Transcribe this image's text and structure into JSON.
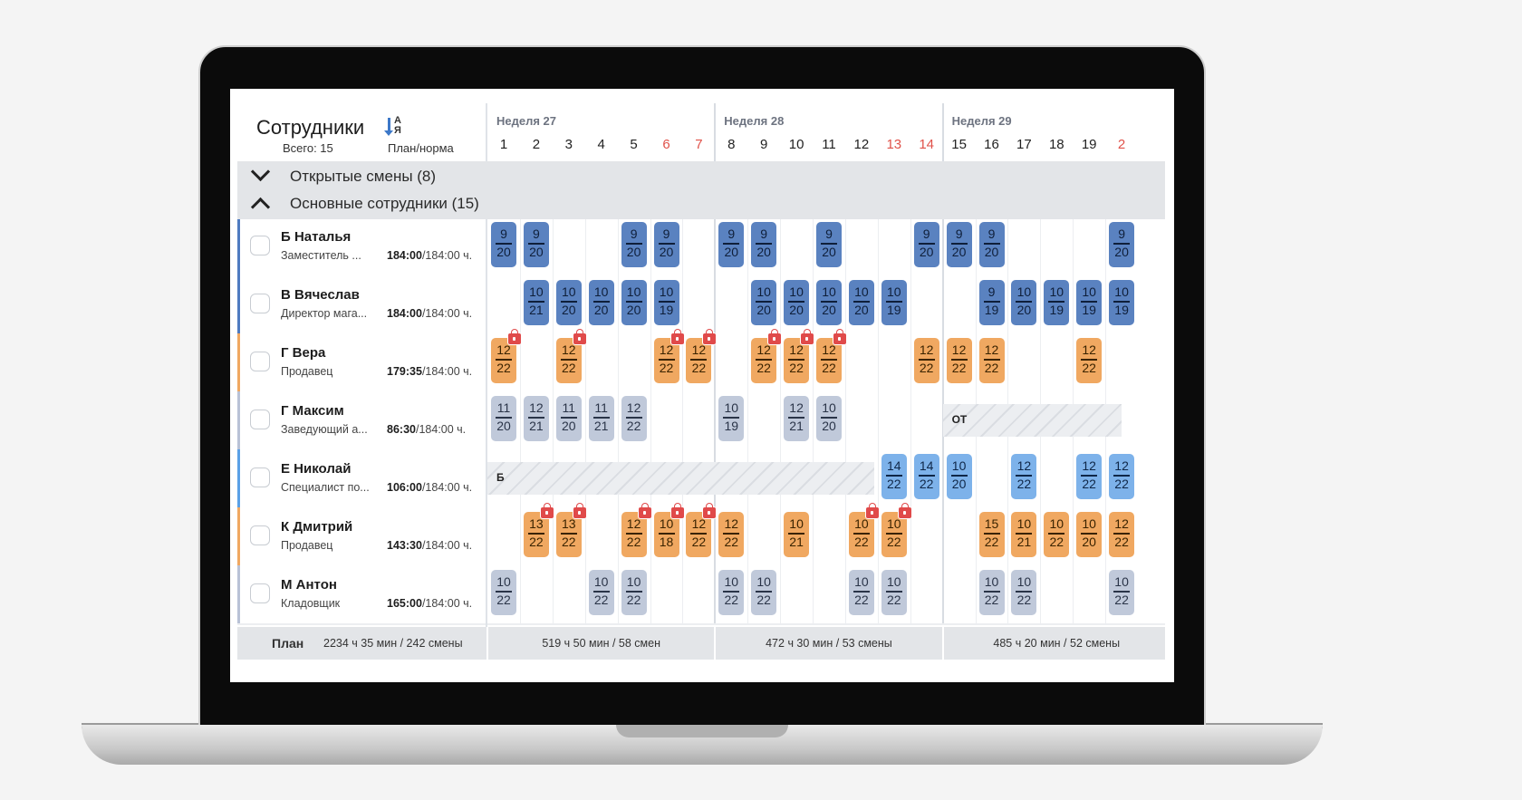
{
  "header": {
    "title": "Сотрудники",
    "total": "Всего: 15",
    "sort_letters": "А\nЯ",
    "plan_norm": "План/норма"
  },
  "weeks": [
    {
      "label": "Неделя 27",
      "start": 0
    },
    {
      "label": "Неделя 28",
      "start": 7
    },
    {
      "label": "Неделя 29",
      "start": 14
    }
  ],
  "days": [
    {
      "n": "1",
      "w": false
    },
    {
      "n": "2",
      "w": false
    },
    {
      "n": "3",
      "w": false
    },
    {
      "n": "4",
      "w": false
    },
    {
      "n": "5",
      "w": false
    },
    {
      "n": "6",
      "w": true
    },
    {
      "n": "7",
      "w": true
    },
    {
      "n": "8",
      "w": false
    },
    {
      "n": "9",
      "w": false
    },
    {
      "n": "10",
      "w": false
    },
    {
      "n": "11",
      "w": false
    },
    {
      "n": "12",
      "w": false
    },
    {
      "n": "13",
      "w": true
    },
    {
      "n": "14",
      "w": true
    },
    {
      "n": "15",
      "w": false
    },
    {
      "n": "16",
      "w": false
    },
    {
      "n": "17",
      "w": false
    },
    {
      "n": "18",
      "w": false
    },
    {
      "n": "19",
      "w": false
    },
    {
      "n": "2",
      "w": true
    }
  ],
  "colors": {
    "dark": "#5a82c0",
    "light": "#7db2ea",
    "orange": "#f0a861",
    "gray": "#c0c9da",
    "weekend": "#e0524a"
  },
  "groups": [
    {
      "label": "Открытые смены (8)",
      "expanded": false
    },
    {
      "label": "Основные сотрудники (15)",
      "expanded": true
    }
  ],
  "employees": [
    {
      "name": "Б Наталья",
      "role": "Заместитель ...",
      "plan": "184:00",
      "norm": "/184:00 ч.",
      "color": "dark",
      "shifts": [
        [
          0,
          "9",
          "20"
        ],
        [
          1,
          "9",
          "20"
        ],
        [
          4,
          "9",
          "20"
        ],
        [
          5,
          "9",
          "20"
        ],
        [
          7,
          "9",
          "20"
        ],
        [
          8,
          "9",
          "20"
        ],
        [
          10,
          "9",
          "20"
        ],
        [
          13,
          "9",
          "20"
        ],
        [
          14,
          "9",
          "20"
        ],
        [
          15,
          "9",
          "20"
        ],
        [
          19,
          "9",
          "20"
        ]
      ]
    },
    {
      "name": "В Вячеслав",
      "role": "Директор мага...",
      "plan": "184:00",
      "norm": "/184:00 ч.",
      "color": "dark",
      "shifts": [
        [
          1,
          "10",
          "21"
        ],
        [
          2,
          "10",
          "20"
        ],
        [
          3,
          "10",
          "20"
        ],
        [
          4,
          "10",
          "20"
        ],
        [
          5,
          "10",
          "19"
        ],
        [
          8,
          "10",
          "20"
        ],
        [
          9,
          "10",
          "20"
        ],
        [
          10,
          "10",
          "20"
        ],
        [
          11,
          "10",
          "20"
        ],
        [
          12,
          "10",
          "19"
        ],
        [
          15,
          "9",
          "19"
        ],
        [
          16,
          "10",
          "20"
        ],
        [
          17,
          "10",
          "19"
        ],
        [
          18,
          "10",
          "19"
        ],
        [
          19,
          "10",
          "19"
        ]
      ]
    },
    {
      "name": "Г Вера",
      "role": "Продавец",
      "plan": "179:35",
      "norm": "/184:00 ч.",
      "color": "orange",
      "shifts": [
        [
          0,
          "12",
          "22",
          true
        ],
        [
          2,
          "12",
          "22",
          true
        ],
        [
          5,
          "12",
          "22",
          true
        ],
        [
          6,
          "12",
          "22",
          true
        ],
        [
          8,
          "12",
          "22",
          true
        ],
        [
          9,
          "12",
          "22",
          true
        ],
        [
          10,
          "12",
          "22",
          true
        ],
        [
          13,
          "12",
          "22"
        ],
        [
          14,
          "12",
          "22"
        ],
        [
          15,
          "12",
          "22"
        ],
        [
          18,
          "12",
          "22"
        ]
      ]
    },
    {
      "name": "Г Максим",
      "role": "Заведующий а...",
      "plan": "86:30",
      "norm": "/184:00 ч.",
      "color": "gray",
      "shifts": [
        [
          0,
          "11",
          "20"
        ],
        [
          1,
          "12",
          "21"
        ],
        [
          2,
          "11",
          "20"
        ],
        [
          3,
          "11",
          "21"
        ],
        [
          4,
          "12",
          "22"
        ],
        [
          7,
          "10",
          "19"
        ],
        [
          9,
          "12",
          "21"
        ],
        [
          10,
          "10",
          "20"
        ]
      ],
      "absence": {
        "label": "ОТ",
        "from": 14,
        "to": 19.5
      }
    },
    {
      "name": "Е Николай",
      "role": "Специалист по...",
      "plan": "106:00",
      "norm": "/184:00 ч.",
      "color": "light",
      "shifts": [
        [
          12,
          "14",
          "22"
        ],
        [
          13,
          "14",
          "22"
        ],
        [
          14,
          "10",
          "20"
        ],
        [
          16,
          "12",
          "22"
        ],
        [
          18,
          "12",
          "22"
        ],
        [
          19,
          "12",
          "22"
        ]
      ],
      "absence": {
        "label": "Б",
        "from": 0,
        "to": 11.9
      }
    },
    {
      "name": "К Дмитрий",
      "role": "Продавец",
      "plan": "143:30",
      "norm": "/184:00 ч.",
      "color": "orange",
      "shifts": [
        [
          1,
          "13",
          "22",
          true
        ],
        [
          2,
          "13",
          "22",
          true
        ],
        [
          4,
          "12",
          "22",
          true
        ],
        [
          5,
          "10",
          "18",
          true
        ],
        [
          6,
          "12",
          "22",
          true
        ],
        [
          7,
          "12",
          "22"
        ],
        [
          9,
          "10",
          "21"
        ],
        [
          11,
          "10",
          "22",
          true
        ],
        [
          12,
          "10",
          "22",
          true
        ],
        [
          15,
          "15",
          "22"
        ],
        [
          16,
          "10",
          "21"
        ],
        [
          17,
          "10",
          "22"
        ],
        [
          18,
          "10",
          "20"
        ],
        [
          19,
          "12",
          "22"
        ]
      ]
    },
    {
      "name": "М Антон",
      "role": "Кладовщик",
      "plan": "165:00",
      "norm": "/184:00 ч.",
      "color": "gray",
      "shifts": [
        [
          0,
          "10",
          "22"
        ],
        [
          3,
          "10",
          "22"
        ],
        [
          4,
          "10",
          "22"
        ],
        [
          7,
          "10",
          "22"
        ],
        [
          8,
          "10",
          "22"
        ],
        [
          11,
          "10",
          "22"
        ],
        [
          12,
          "10",
          "22"
        ],
        [
          15,
          "10",
          "22"
        ],
        [
          16,
          "10",
          "22"
        ],
        [
          19,
          "10",
          "22"
        ]
      ]
    }
  ],
  "footer": {
    "label": "План",
    "total": "2234 ч 35 мин / 242 смены",
    "weeks": [
      "519 ч 50 мин / 58 смен",
      "472 ч 30 мин / 53 смены",
      "485 ч 20 мин / 52 смены"
    ]
  }
}
